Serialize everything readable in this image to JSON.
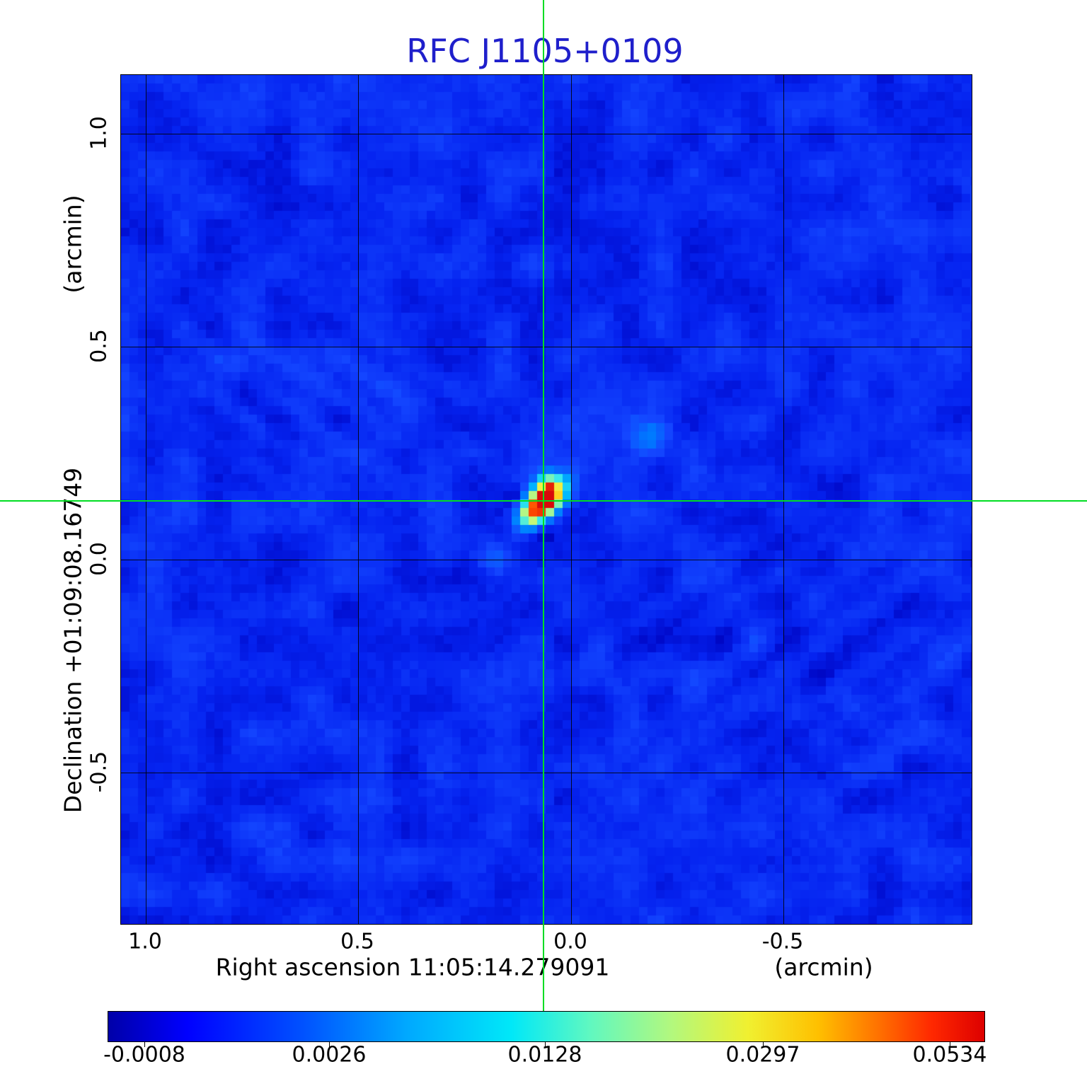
{
  "title": {
    "text": "RFC J1105+0109",
    "color": "#1f1fcb"
  },
  "axes": {
    "y": {
      "label": "Declination  +01:09:08.16749",
      "unit": "(arcmin)",
      "ticks": [
        "1.0",
        "0.5",
        "0.0",
        "-0.5"
      ]
    },
    "x": {
      "label": "Right ascension  11:05:14.279091",
      "unit": "(arcmin)",
      "ticks": [
        "1.0",
        "0.5",
        "0.0",
        "-0.5"
      ]
    }
  },
  "colorbar": {
    "ticks": [
      "-0.0008",
      "0.0026",
      "0.0128",
      "0.0297",
      "0.0534"
    ],
    "colormap": "jet"
  },
  "crosshair": {
    "color": "#00dd22",
    "marks_ra": "11:05:14.279091",
    "marks_dec": "+01:09:08.16749"
  },
  "chart_data": {
    "type": "heatmap",
    "title": "RFC J1105+0109",
    "xlabel": "Right ascension  11:05:14.279091  (arcmin)",
    "ylabel": "Declination  +01:09:08.16749  (arcmin)",
    "x_ticks_arcmin": [
      1.0,
      0.5,
      0.0,
      -0.5
    ],
    "y_ticks_arcmin": [
      1.0,
      0.5,
      0.0,
      -0.5
    ],
    "x_range_arcmin": [
      1.06,
      -0.94
    ],
    "y_range_arcmin": [
      -0.86,
      1.14
    ],
    "grid": true,
    "colorbar_tick_values": [
      -0.0008,
      0.0026,
      0.0128,
      0.0297,
      0.0534
    ],
    "intensity_min": -0.0008,
    "intensity_max": 0.0534,
    "background_noise_level_range": [
      -0.0008,
      0.003
    ],
    "peak": {
      "value": 0.0534,
      "offset_arcmin_x": 0.06,
      "offset_arcmin_y": 0.14,
      "at_crosshair": true,
      "morphology": "compact elongated source, cyan halo, jet-like extension to NE"
    },
    "secondary_features": [
      {
        "desc": "faint light-blue blob NE of peak",
        "offset_arcmin_x": -0.24,
        "offset_arcmin_y": 0.29
      },
      {
        "desc": "faint light-blue counter-lobe SW of peak",
        "offset_arcmin_x": 0.19,
        "offset_arcmin_y": -0.01
      },
      {
        "desc": "low-level diagonal sidelobe ripples left-center and right of field"
      }
    ]
  }
}
